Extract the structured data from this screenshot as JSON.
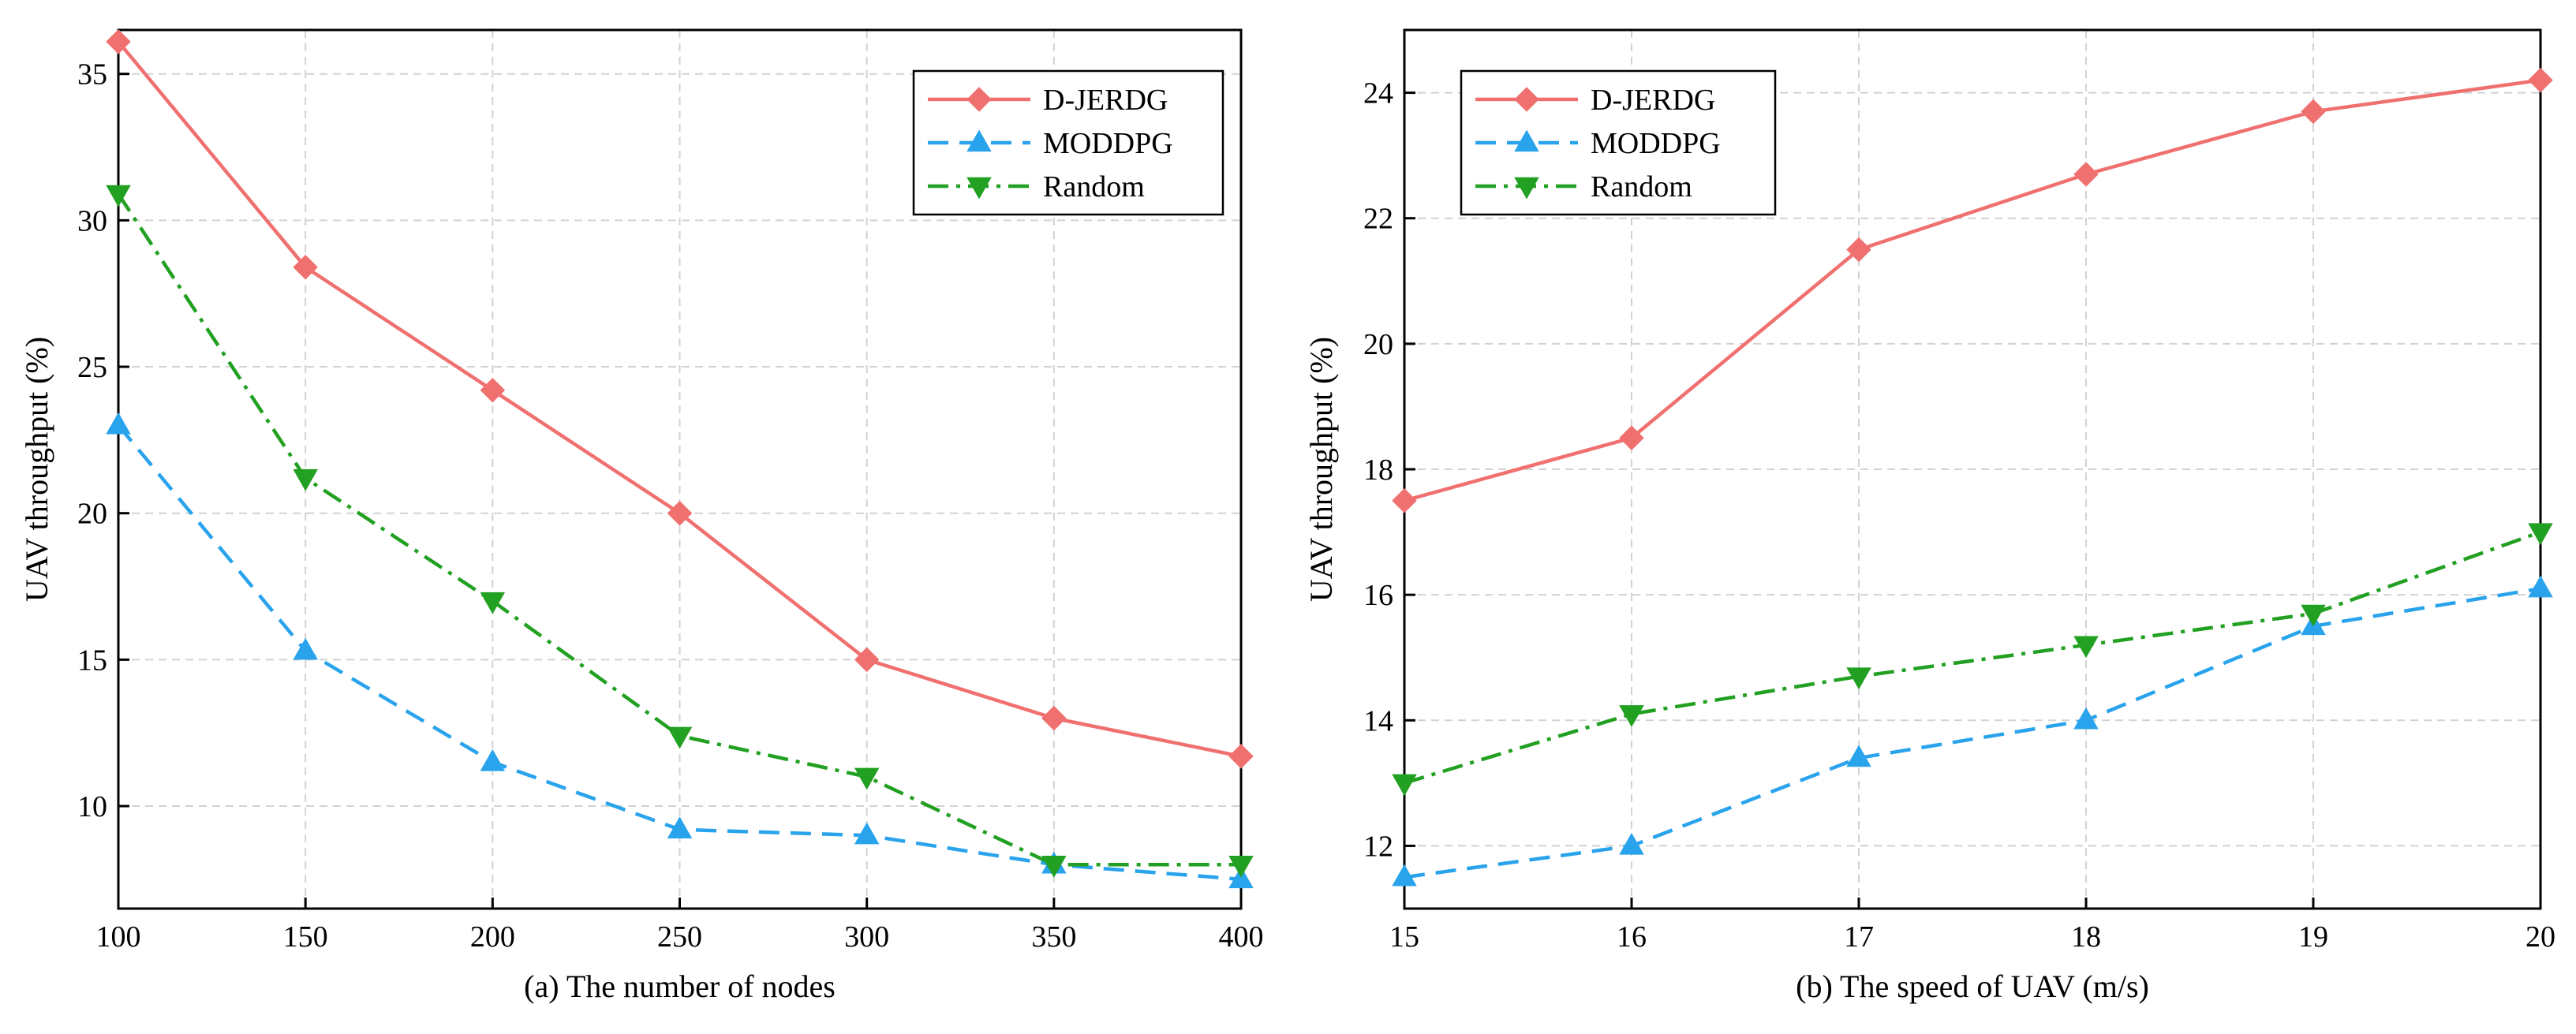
{
  "chart_data": [
    {
      "type": "line",
      "caption": "(a) The number of nodes",
      "xlabel": "",
      "ylabel": "UAV throughput (%)",
      "x": [
        100,
        150,
        200,
        250,
        300,
        350,
        400
      ],
      "xlim": [
        100,
        400
      ],
      "xticks": [
        100,
        150,
        200,
        250,
        300,
        350,
        400
      ],
      "ylim": [
        6.5,
        36.5
      ],
      "yticks": [
        10,
        15,
        20,
        25,
        30,
        35
      ],
      "grid": true,
      "legend": "top-right",
      "series": [
        {
          "name": "D-JERDG",
          "values": [
            36.1,
            28.4,
            24.2,
            20.0,
            15.0,
            13.0,
            11.7
          ],
          "color": "#f07070",
          "marker": "diamond",
          "dash": "solid"
        },
        {
          "name": "MODDPG",
          "values": [
            23.0,
            15.3,
            11.5,
            9.2,
            9.0,
            8.0,
            7.5
          ],
          "color": "#29a3ec",
          "marker": "triangle-up",
          "dash": "dashed"
        },
        {
          "name": "Random",
          "values": [
            30.9,
            21.2,
            17.0,
            12.4,
            11.0,
            8.0,
            8.0
          ],
          "color": "#22a022",
          "marker": "triangle-down",
          "dash": "dashdot"
        }
      ]
    },
    {
      "type": "line",
      "caption": "(b) The speed of UAV (m/s)",
      "xlabel": "",
      "ylabel": "UAV throughput (%)",
      "x": [
        15,
        16,
        17,
        18,
        19,
        20
      ],
      "xlim": [
        15,
        20
      ],
      "xticks": [
        15,
        16,
        17,
        18,
        19,
        20
      ],
      "ylim": [
        11,
        25
      ],
      "yticks": [
        12,
        14,
        16,
        18,
        20,
        22,
        24
      ],
      "grid": true,
      "legend": "top-left",
      "series": [
        {
          "name": "D-JERDG",
          "values": [
            17.5,
            18.5,
            21.5,
            22.7,
            23.7,
            24.2
          ],
          "color": "#f07070",
          "marker": "diamond",
          "dash": "solid"
        },
        {
          "name": "MODDPG",
          "values": [
            11.5,
            12.0,
            13.4,
            14.0,
            15.5,
            16.1
          ],
          "color": "#29a3ec",
          "marker": "triangle-up",
          "dash": "dashed"
        },
        {
          "name": "Random",
          "values": [
            13.0,
            14.1,
            14.7,
            15.2,
            15.7,
            17.0
          ],
          "color": "#22a022",
          "marker": "triangle-down",
          "dash": "dashdot"
        }
      ]
    }
  ]
}
